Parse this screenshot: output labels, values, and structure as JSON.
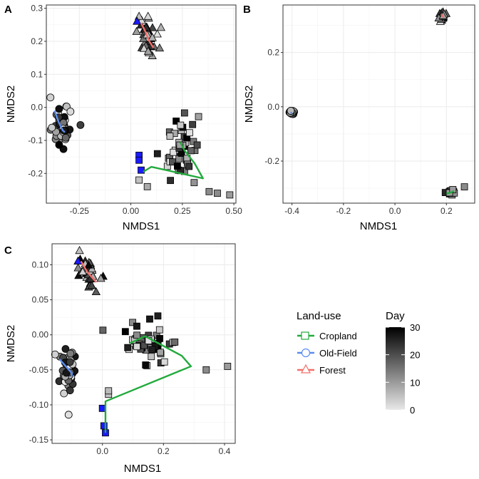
{
  "chart_data": [
    {
      "panel": "A",
      "type": "scatter",
      "xlabel": "NMDS1",
      "ylabel": "NMDS2",
      "xlim": [
        -0.41,
        0.51
      ],
      "ylim": [
        -0.29,
        0.31
      ],
      "xticks": [
        "-0.25",
        "0.00",
        "0.25",
        "0.50"
      ],
      "xtick_values": [
        -0.25,
        0.0,
        0.25,
        0.5
      ],
      "yticks": [
        "-0.2",
        "-0.1",
        "0.0",
        "0.1",
        "0.2",
        "0.3"
      ],
      "ytick_values": [
        -0.2,
        -0.1,
        0.0,
        0.1,
        0.2,
        0.3
      ],
      "grid": true,
      "clusters": [
        {
          "landuse": "Old-Field",
          "shape": "circle",
          "cx": -0.33,
          "cy": -0.065,
          "sx": 0.022,
          "sy": 0.03,
          "n": 45
        },
        {
          "landuse": "Forest",
          "shape": "triangle",
          "cx": 0.08,
          "cy": 0.21,
          "sx": 0.02,
          "sy": 0.028,
          "n": 45
        },
        {
          "landuse": "Cropland",
          "shape": "square",
          "cx": 0.25,
          "cy": -0.12,
          "sx": 0.05,
          "sy": 0.045,
          "n": 45
        }
      ],
      "extra_points": [
        {
          "shape": "square",
          "x": 0.04,
          "y": -0.145,
          "day": 0
        },
        {
          "shape": "square",
          "x": 0.04,
          "y": -0.16,
          "day": 0
        },
        {
          "shape": "square",
          "x": 0.05,
          "y": -0.19,
          "day": 0
        },
        {
          "shape": "square",
          "x": 0.04,
          "y": -0.22,
          "day": 5
        },
        {
          "shape": "square",
          "x": 0.08,
          "y": -0.24,
          "day": 8
        },
        {
          "shape": "square",
          "x": 0.38,
          "y": -0.255,
          "day": 12
        },
        {
          "shape": "square",
          "x": 0.42,
          "y": -0.26,
          "day": 12
        },
        {
          "shape": "square",
          "x": 0.48,
          "y": -0.265,
          "day": 10
        },
        {
          "shape": "circle",
          "x": -0.39,
          "y": 0.03,
          "day": 3
        },
        {
          "shape": "triangle",
          "x": 0.04,
          "y": 0.275,
          "day": 5
        },
        {
          "shape": "triangle",
          "x": 0.03,
          "y": 0.26,
          "day": 0
        }
      ],
      "trajectories": [
        {
          "landuse": "Cropland",
          "points": [
            [
              0.06,
              -0.195
            ],
            [
              0.1,
              -0.18
            ],
            [
              0.35,
              -0.215
            ],
            [
              0.31,
              -0.17
            ],
            [
              0.26,
              -0.13
            ],
            [
              0.24,
              -0.105
            ]
          ]
        },
        {
          "landuse": "Old-Field",
          "points": [
            [
              -0.37,
              -0.01
            ],
            [
              -0.35,
              -0.045
            ],
            [
              -0.33,
              -0.07
            ],
            [
              -0.32,
              -0.075
            ]
          ]
        },
        {
          "landuse": "Forest",
          "points": [
            [
              0.05,
              0.255
            ],
            [
              0.07,
              0.23
            ],
            [
              0.09,
              0.2
            ],
            [
              0.11,
              0.18
            ]
          ]
        }
      ]
    },
    {
      "panel": "B",
      "type": "scatter",
      "xlabel": "NMDS1",
      "ylabel": "NMDS2",
      "xlim": [
        -0.435,
        0.31
      ],
      "ylim": [
        -0.355,
        0.375
      ],
      "xticks": [
        "-0.4",
        "-0.2",
        "0.0",
        "0.2"
      ],
      "xtick_values": [
        -0.4,
        -0.2,
        0.0,
        0.2
      ],
      "yticks": [
        "-0.2",
        "0.0",
        "0.2"
      ],
      "ytick_values": [
        -0.2,
        0.0,
        0.2
      ],
      "grid": true,
      "clusters": [
        {
          "landuse": "Old-Field",
          "shape": "circle",
          "cx": -0.4,
          "cy": -0.022,
          "sx": 0.004,
          "sy": 0.004,
          "n": 25
        },
        {
          "landuse": "Forest",
          "shape": "triangle",
          "cx": 0.185,
          "cy": 0.33,
          "sx": 0.006,
          "sy": 0.006,
          "n": 25
        },
        {
          "landuse": "Cropland",
          "shape": "square",
          "cx": 0.215,
          "cy": -0.315,
          "sx": 0.01,
          "sy": 0.005,
          "n": 25
        }
      ],
      "extra_points": [
        {
          "shape": "square",
          "x": 0.27,
          "y": -0.295,
          "day": 12
        },
        {
          "shape": "square",
          "x": 0.225,
          "y": -0.305,
          "day": 10
        }
      ],
      "trajectories": [
        {
          "landuse": "Cropland",
          "points": [
            [
              0.2,
              -0.32
            ],
            [
              0.22,
              -0.315
            ],
            [
              0.23,
              -0.31
            ]
          ]
        },
        {
          "landuse": "Old-Field",
          "points": [
            [
              -0.405,
              -0.02
            ],
            [
              -0.4,
              -0.025
            ]
          ]
        },
        {
          "landuse": "Forest",
          "points": [
            [
              0.18,
              0.34
            ],
            [
              0.19,
              0.33
            ]
          ]
        }
      ]
    },
    {
      "panel": "C",
      "type": "scatter",
      "xlabel": "NMDS1",
      "ylabel": "NMDS2",
      "xlim": [
        -0.165,
        0.435
      ],
      "ylim": [
        -0.155,
        0.13
      ],
      "xticks": [
        "0.0",
        "0.2",
        "0.4"
      ],
      "xtick_values": [
        0.0,
        0.2,
        0.4
      ],
      "yticks": [
        "-0.15",
        "-0.10",
        "-0.05",
        "0.00",
        "0.05",
        "0.10"
      ],
      "ytick_values": [
        -0.15,
        -0.1,
        -0.05,
        0.0,
        0.05,
        0.1
      ],
      "grid": true,
      "clusters": [
        {
          "landuse": "Old-Field",
          "shape": "circle",
          "cx": -0.11,
          "cy": -0.05,
          "sx": 0.012,
          "sy": 0.015,
          "n": 45
        },
        {
          "landuse": "Forest",
          "shape": "triangle",
          "cx": -0.045,
          "cy": 0.085,
          "sx": 0.015,
          "sy": 0.01,
          "n": 40
        },
        {
          "landuse": "Cropland",
          "shape": "square",
          "cx": 0.15,
          "cy": -0.01,
          "sx": 0.045,
          "sy": 0.018,
          "n": 50
        }
      ],
      "extra_points": [
        {
          "shape": "square",
          "x": 0.01,
          "y": -0.14,
          "day": 0
        },
        {
          "shape": "square",
          "x": 0.005,
          "y": -0.13,
          "day": 0
        },
        {
          "shape": "square",
          "x": 0.0,
          "y": -0.105,
          "day": 0
        },
        {
          "shape": "square",
          "x": 0.02,
          "y": -0.085,
          "day": 5
        },
        {
          "shape": "square",
          "x": 0.02,
          "y": -0.08,
          "day": 6
        },
        {
          "shape": "square",
          "x": 0.34,
          "y": -0.05,
          "day": 12
        },
        {
          "shape": "square",
          "x": 0.41,
          "y": -0.045,
          "day": 10
        },
        {
          "shape": "circle",
          "x": -0.155,
          "y": -0.028,
          "day": 3
        },
        {
          "shape": "triangle",
          "x": -0.075,
          "y": 0.12,
          "day": 5
        },
        {
          "shape": "triangle",
          "x": -0.08,
          "y": 0.105,
          "day": 0
        }
      ],
      "trajectories": [
        {
          "landuse": "Cropland",
          "points": [
            [
              0.01,
              -0.14
            ],
            [
              0.01,
              -0.095
            ],
            [
              0.29,
              -0.045
            ],
            [
              0.26,
              -0.03
            ],
            [
              0.14,
              -0.002
            ],
            [
              0.09,
              -0.012
            ]
          ]
        },
        {
          "landuse": "Old-Field",
          "points": [
            [
              -0.14,
              -0.035
            ],
            [
              -0.12,
              -0.045
            ],
            [
              -0.1,
              -0.055
            ],
            [
              -0.1,
              -0.06
            ]
          ]
        },
        {
          "landuse": "Forest",
          "points": [
            [
              -0.07,
              0.105
            ],
            [
              -0.05,
              0.09
            ],
            [
              -0.02,
              0.075
            ]
          ]
        }
      ]
    }
  ],
  "legend": {
    "landuse_title": "Land-use",
    "landuse_items": [
      {
        "label": "Cropland",
        "shape": "square",
        "color": "#22AA3C"
      },
      {
        "label": "Old-Field",
        "shape": "circle",
        "color": "#5B8DEF"
      },
      {
        "label": "Forest",
        "shape": "triangle",
        "color": "#F2706A"
      }
    ],
    "day_title": "Day",
    "day_ticks": [
      "30",
      "20",
      "10",
      "0"
    ],
    "day_tick_values": [
      30,
      20,
      10,
      0
    ],
    "day_range": [
      0,
      30
    ]
  },
  "colors": {
    "cropland": "#22AA3C",
    "old_field": "#5B8DEF",
    "forest": "#F2706A",
    "day0_highlight": "#1a1aff",
    "panel_border": "#333333",
    "grid": "#ebebeb"
  }
}
